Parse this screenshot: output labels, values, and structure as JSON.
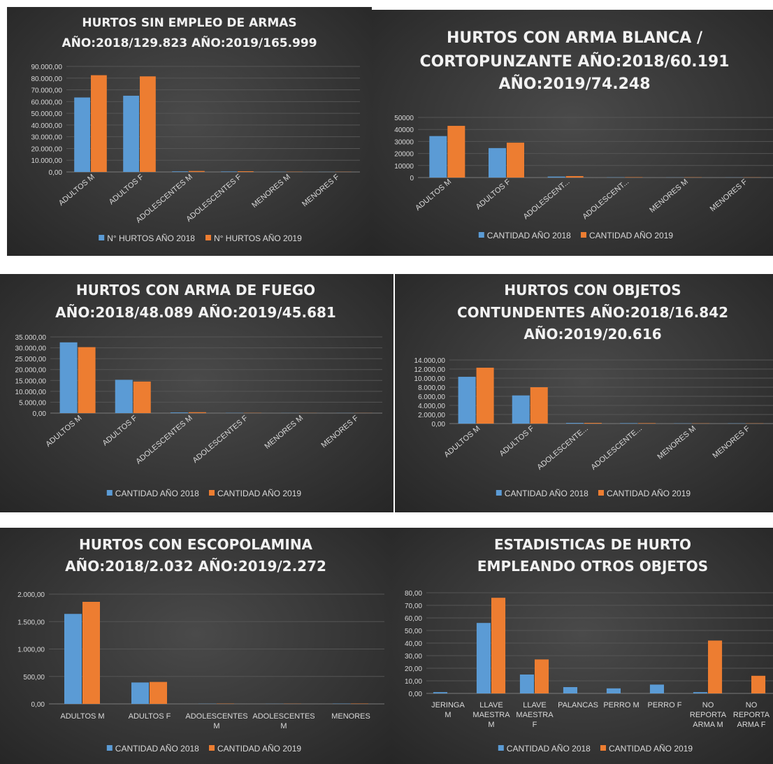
{
  "colors": {
    "series_2018": "#5b9bd5",
    "series_2019": "#ed7d31",
    "grid": "#555555"
  },
  "chart_data": [
    {
      "type": "bar",
      "title": [
        "HURTOS SIN EMPLEO DE ARMAS",
        "AÑO:2018/129.823 AÑO:2019/165.999"
      ],
      "categories": [
        "ADULTOS M",
        "ADULTOS F",
        "ADOLESCENTES M",
        "ADOLESCENTES F",
        "MENORES M",
        "MENORES F"
      ],
      "series": [
        {
          "name": "N° HURTOS AÑO 2018",
          "values": [
            63500,
            65000,
            500,
            400,
            150,
            100
          ]
        },
        {
          "name": "N° HURTOS AÑO 2019",
          "values": [
            82500,
            81500,
            800,
            600,
            200,
            150
          ]
        }
      ],
      "yticks": [
        "0,00",
        "10.000,00",
        "20.000,00",
        "30.000,00",
        "40.000,00",
        "50.000,00",
        "60.000,00",
        "70.000,00",
        "80.000,00",
        "90.000,00"
      ],
      "ylim": [
        0,
        90000
      ],
      "grid": true,
      "legend": "bottom"
    },
    {
      "type": "bar",
      "title": [
        "HURTOS CON ARMA BLANCA /",
        "CORTOPUNZANTE AÑO:2018/60.191",
        "AÑO:2019/74.248"
      ],
      "categories": [
        "ADULTOS M",
        "ADULTOS F",
        "ADOLESCENT...",
        "ADOLESCENT...",
        "MENORES M",
        "MENORES F"
      ],
      "series": [
        {
          "name": "CANTIDAD AÑO 2018",
          "values": [
            34500,
            24500,
            800,
            200,
            100,
            100
          ]
        },
        {
          "name": "CANTIDAD AÑO 2019",
          "values": [
            43000,
            29000,
            1200,
            300,
            200,
            150
          ]
        }
      ],
      "yticks": [
        "0",
        "10000",
        "20000",
        "30000",
        "40000",
        "50000"
      ],
      "ylim": [
        0,
        50000
      ],
      "grid": true,
      "legend": "bottom"
    },
    {
      "type": "bar",
      "title": [
        "HURTOS CON ARMA DE FUEGO",
        "AÑO:2018/48.089   AÑO:2019/45.681"
      ],
      "categories": [
        "ADULTOS M",
        "ADULTOS F",
        "ADOLESCENTES M",
        "ADOLESCENTES F",
        "MENORES M",
        "MENORES F"
      ],
      "series": [
        {
          "name": "CANTIDAD AÑO 2018",
          "values": [
            32500,
            15300,
            300,
            100,
            50,
            50
          ]
        },
        {
          "name": "CANTIDAD AÑO 2019",
          "values": [
            30300,
            14500,
            400,
            100,
            50,
            50
          ]
        }
      ],
      "yticks": [
        "0,00",
        "5.000,00",
        "10.000,00",
        "15.000,00",
        "20.000,00",
        "25.000,00",
        "30.000,00",
        "35.000,00"
      ],
      "ylim": [
        0,
        35000
      ],
      "grid": true,
      "legend": "bottom"
    },
    {
      "type": "bar",
      "title": [
        "HURTOS CON OBJETOS",
        "CONTUNDENTES AÑO:2018/16.842",
        "AÑO:2019/20.616"
      ],
      "categories": [
        "ADULTOS M",
        "ADULTOS F",
        "ADOLESCENTE...",
        "ADOLESCENTE...",
        "MENORES M",
        "MENORES F"
      ],
      "series": [
        {
          "name": "CANTIDAD AÑO 2018",
          "values": [
            10300,
            6200,
            150,
            100,
            50,
            50
          ]
        },
        {
          "name": "CANTIDAD AÑO 2019",
          "values": [
            12300,
            8000,
            150,
            100,
            50,
            50
          ]
        }
      ],
      "yticks": [
        "0,00",
        "2.000,00",
        "4.000,00",
        "6.000,00",
        "8.000,00",
        "10.000,00",
        "12.000,00",
        "14.000,00"
      ],
      "ylim": [
        0,
        14000
      ],
      "grid": true,
      "legend": "bottom"
    },
    {
      "type": "bar",
      "title": [
        "HURTOS CON ESCOPOLAMINA",
        "AÑO:2018/2.032     AÑO:2019/2.272"
      ],
      "categories": [
        [
          "ADULTOS M"
        ],
        [
          "ADULTOS F"
        ],
        [
          "ADOLESCENTES",
          "M"
        ],
        [
          "ADOLESCENTES",
          "M"
        ],
        [
          "MENORES"
        ]
      ],
      "series": [
        {
          "name": "CANTIDAD AÑO 2018",
          "values": [
            1640,
            390,
            3,
            2,
            5
          ]
        },
        {
          "name": "CANTIDAD AÑO 2019",
          "values": [
            1860,
            400,
            5,
            3,
            6
          ]
        }
      ],
      "yticks": [
        "0,00",
        "500,00",
        "1.000,00",
        "1.500,00",
        "2.000,00"
      ],
      "ylim": [
        0,
        2000
      ],
      "grid": true,
      "legend": "bottom"
    },
    {
      "type": "bar",
      "title": [
        "ESTADISTICAS DE HURTO",
        "EMPLEANDO OTROS OBJETOS"
      ],
      "categories": [
        [
          "JERINGA",
          "M"
        ],
        [
          "LLAVE",
          "MAESTRA",
          "M"
        ],
        [
          "LLAVE",
          "MAESTRA",
          "F"
        ],
        [
          "PALANCAS"
        ],
        [
          "PERRO M"
        ],
        [
          "PERRO F"
        ],
        [
          "NO",
          "REPORTA",
          "ARMA M"
        ],
        [
          "NO",
          "REPORTA",
          "ARMA F"
        ]
      ],
      "series": [
        {
          "name": "CANTIDAD AÑO 2018",
          "values": [
            1,
            56,
            15,
            5,
            4,
            7,
            1,
            0
          ]
        },
        {
          "name": "CANTIDAD AÑO 2019",
          "values": [
            0,
            76,
            27,
            0,
            0,
            0,
            42,
            14
          ]
        }
      ],
      "yticks": [
        "0,00",
        "10,00",
        "20,00",
        "30,00",
        "40,00",
        "50,00",
        "60,00",
        "70,00",
        "80,00"
      ],
      "ylim": [
        0,
        80
      ],
      "grid": true,
      "legend": "bottom"
    }
  ]
}
